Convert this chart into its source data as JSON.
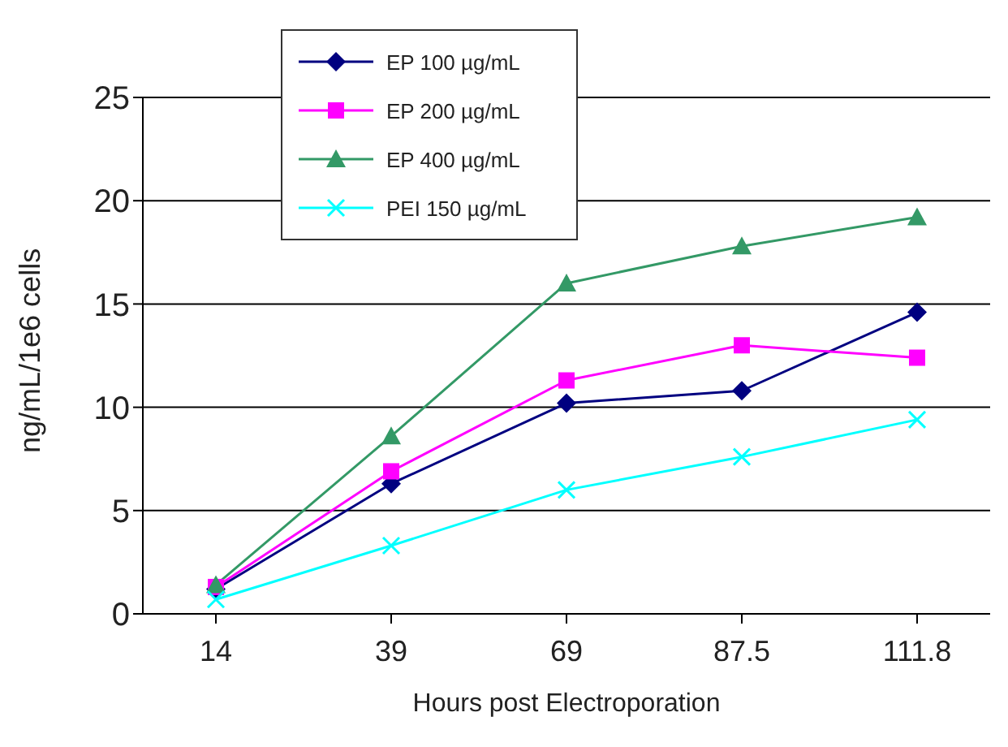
{
  "chart_data": {
    "type": "line",
    "xlabel": "Hours post Electroporation",
    "ylabel": "ng/mL/1e6 cells",
    "categories": [
      "14",
      "39",
      "69",
      "87.5",
      "111.8"
    ],
    "series": [
      {
        "name": "EP 100 µg/mL",
        "color": "#000080",
        "marker": "diamond",
        "values": [
          1.2,
          6.3,
          10.2,
          10.8,
          14.6
        ]
      },
      {
        "name": "EP 200 µg/mL",
        "color": "#ff00ff",
        "marker": "square",
        "values": [
          1.3,
          6.9,
          11.3,
          13.0,
          12.4
        ]
      },
      {
        "name": "EP 400 µg/mL",
        "color": "#339966",
        "marker": "triangle",
        "values": [
          1.4,
          8.6,
          16.0,
          17.8,
          19.2
        ]
      },
      {
        "name": "PEI 150 µg/mL",
        "color": "#00ffff",
        "marker": "cross",
        "values": [
          0.7,
          3.3,
          6.0,
          7.6,
          9.4
        ]
      }
    ],
    "ylim": [
      0,
      25
    ],
    "yticks": [
      0,
      5,
      10,
      15,
      20,
      25
    ],
    "grid": "y",
    "legend": "top left",
    "line_style": "solid"
  }
}
